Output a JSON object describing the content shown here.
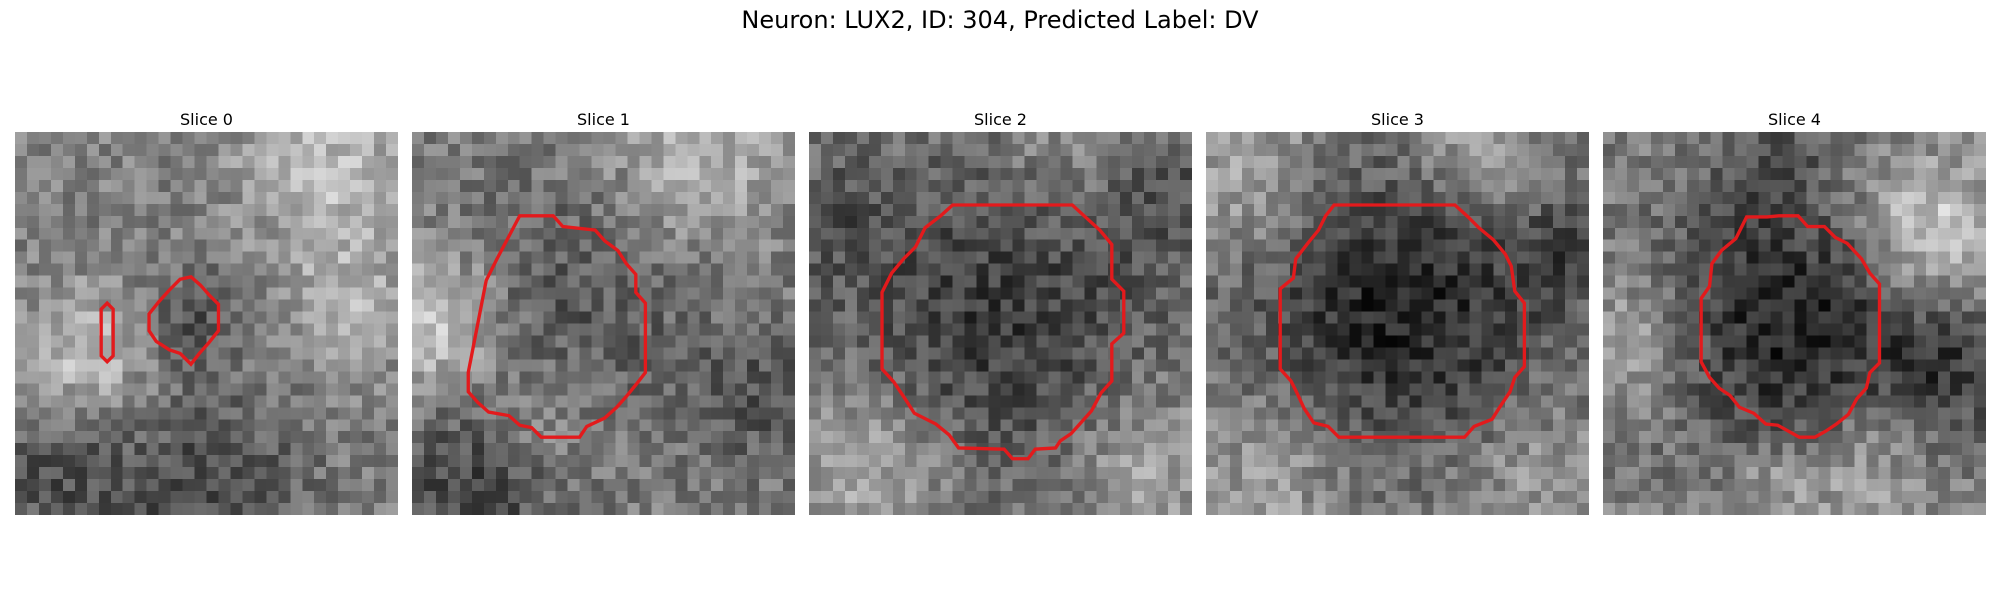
{
  "figure": {
    "title": "Neuron: LUX2, ID: 304, Predicted Label: DV",
    "contour_color": "#e31a1c",
    "colormap": "grayscale",
    "panels": [
      {
        "title": "Slice 0"
      },
      {
        "title": "Slice 1"
      },
      {
        "title": "Slice 2"
      },
      {
        "title": "Slice 3"
      },
      {
        "title": "Slice 4"
      }
    ]
  }
}
